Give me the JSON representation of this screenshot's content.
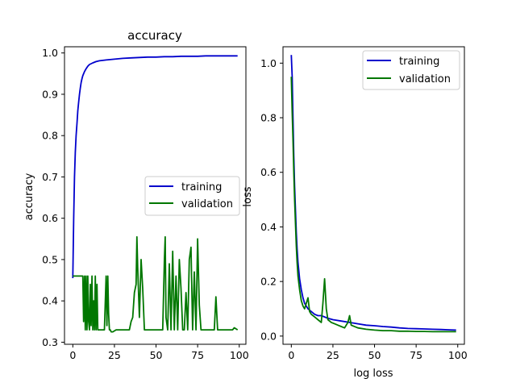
{
  "chart_data": [
    {
      "type": "line",
      "title": "accuracy",
      "xlabel": "",
      "ylabel": "accuracy",
      "xlim": [
        -5,
        104
      ],
      "ylim": [
        0.295,
        1.015
      ],
      "xticks": [
        0,
        25,
        50,
        75,
        100
      ],
      "yticks": [
        0.3,
        0.4,
        0.5,
        0.6,
        0.7,
        0.8,
        0.9,
        1.0
      ],
      "ytick_labels": [
        "0.3",
        "0.4",
        "0.5",
        "0.6",
        "0.7",
        "0.8",
        "0.9",
        "1.0"
      ],
      "grid": false,
      "legend_position": "center-right",
      "series": [
        {
          "name": "training",
          "color": "#0000cc",
          "x": [
            0,
            0.5,
            1,
            1.5,
            2,
            2.5,
            3,
            3.5,
            4,
            4.5,
            5,
            5.5,
            6,
            7,
            8,
            9,
            10,
            12,
            14,
            16,
            18,
            20,
            25,
            30,
            35,
            40,
            45,
            50,
            55,
            60,
            65,
            70,
            75,
            80,
            85,
            90,
            95,
            99
          ],
          "y": [
            0.455,
            0.6,
            0.7,
            0.76,
            0.8,
            0.83,
            0.86,
            0.88,
            0.9,
            0.915,
            0.928,
            0.938,
            0.945,
            0.955,
            0.962,
            0.968,
            0.972,
            0.976,
            0.979,
            0.981,
            0.982,
            0.983,
            0.985,
            0.987,
            0.988,
            0.989,
            0.99,
            0.99,
            0.991,
            0.991,
            0.992,
            0.992,
            0.992,
            0.993,
            0.993,
            0.993,
            0.993,
            0.993
          ]
        },
        {
          "name": "validation",
          "color": "#007700",
          "x": [
            0,
            1,
            3,
            5,
            6,
            6.5,
            7,
            7.5,
            8,
            8.5,
            9,
            9.5,
            10,
            10.5,
            11,
            11.5,
            12,
            12.5,
            13,
            13.5,
            14,
            14.5,
            15,
            16,
            17,
            18,
            19,
            20,
            20.5,
            21,
            21.5,
            22,
            22.5,
            23,
            24,
            26,
            28,
            30,
            32,
            34,
            35,
            36,
            37,
            38,
            38.5,
            39,
            40,
            41,
            42,
            43,
            44,
            45,
            46,
            47,
            48,
            49,
            50,
            51,
            52,
            53,
            54,
            55,
            55.5,
            56,
            57,
            58,
            59,
            60,
            61,
            62,
            63,
            64,
            65,
            66,
            67,
            68,
            69,
            70,
            71,
            72,
            73,
            74,
            75,
            76,
            77,
            78,
            79,
            80,
            81,
            82,
            83,
            84,
            85,
            86,
            87,
            88,
            90,
            92,
            94,
            96,
            97,
            99
          ],
          "y": [
            0.46,
            0.46,
            0.46,
            0.46,
            0.46,
            0.35,
            0.46,
            0.33,
            0.46,
            0.33,
            0.46,
            0.35,
            0.33,
            0.44,
            0.34,
            0.46,
            0.33,
            0.4,
            0.33,
            0.46,
            0.33,
            0.44,
            0.33,
            0.33,
            0.33,
            0.33,
            0.33,
            0.46,
            0.34,
            0.46,
            0.37,
            0.33,
            0.33,
            0.325,
            0.325,
            0.33,
            0.33,
            0.33,
            0.33,
            0.33,
            0.35,
            0.36,
            0.42,
            0.44,
            0.555,
            0.48,
            0.36,
            0.5,
            0.43,
            0.33,
            0.33,
            0.33,
            0.33,
            0.33,
            0.33,
            0.33,
            0.33,
            0.33,
            0.33,
            0.33,
            0.33,
            0.5,
            0.555,
            0.36,
            0.33,
            0.49,
            0.33,
            0.52,
            0.33,
            0.46,
            0.33,
            0.5,
            0.43,
            0.33,
            0.33,
            0.42,
            0.33,
            0.5,
            0.53,
            0.33,
            0.47,
            0.33,
            0.55,
            0.39,
            0.33,
            0.33,
            0.33,
            0.33,
            0.33,
            0.33,
            0.33,
            0.33,
            0.33,
            0.41,
            0.33,
            0.33,
            0.33,
            0.33,
            0.33,
            0.33,
            0.335,
            0.33
          ]
        }
      ]
    },
    {
      "type": "line",
      "title": "",
      "xlabel": "log loss",
      "ylabel": "loss",
      "xlim": [
        -5,
        104
      ],
      "ylim": [
        -0.03,
        1.06
      ],
      "xticks": [
        0,
        25,
        50,
        75,
        100
      ],
      "yticks": [
        0.0,
        0.2,
        0.4,
        0.6,
        0.8,
        1.0
      ],
      "ytick_labels": [
        "0.0",
        "0.2",
        "0.4",
        "0.6",
        "0.8",
        "1.0"
      ],
      "grid": false,
      "legend_position": "top-right",
      "series": [
        {
          "name": "training",
          "color": "#0000cc",
          "x": [
            0,
            0.5,
            1,
            1.5,
            2,
            2.5,
            3,
            3.5,
            4,
            5,
            6,
            7,
            8,
            9,
            10,
            11,
            12,
            14,
            16,
            18,
            20,
            22,
            25,
            30,
            35,
            40,
            45,
            50,
            55,
            60,
            65,
            70,
            75,
            80,
            85,
            90,
            95,
            99
          ],
          "y": [
            1.03,
            0.95,
            0.8,
            0.66,
            0.55,
            0.46,
            0.38,
            0.32,
            0.27,
            0.21,
            0.17,
            0.14,
            0.12,
            0.11,
            0.1,
            0.095,
            0.09,
            0.08,
            0.075,
            0.075,
            0.07,
            0.065,
            0.06,
            0.055,
            0.05,
            0.045,
            0.04,
            0.038,
            0.035,
            0.033,
            0.03,
            0.028,
            0.027,
            0.026,
            0.025,
            0.024,
            0.023,
            0.022
          ]
        },
        {
          "name": "validation",
          "color": "#007700",
          "x": [
            0,
            0.5,
            1,
            1.5,
            2,
            2.5,
            3,
            3.5,
            4,
            5,
            6,
            7,
            8,
            9,
            10,
            11,
            12,
            14,
            16,
            18,
            19,
            20,
            21,
            22,
            24,
            26,
            28,
            30,
            32,
            34,
            35,
            36,
            40,
            45,
            50,
            55,
            60,
            65,
            70,
            75,
            80,
            85,
            90,
            95,
            99
          ],
          "y": [
            0.95,
            0.82,
            0.72,
            0.6,
            0.5,
            0.41,
            0.33,
            0.27,
            0.22,
            0.17,
            0.13,
            0.11,
            0.1,
            0.12,
            0.14,
            0.09,
            0.08,
            0.07,
            0.06,
            0.05,
            0.12,
            0.21,
            0.1,
            0.06,
            0.05,
            0.045,
            0.04,
            0.035,
            0.03,
            0.05,
            0.075,
            0.04,
            0.03,
            0.025,
            0.022,
            0.02,
            0.02,
            0.018,
            0.018,
            0.017,
            0.017,
            0.016,
            0.016,
            0.016,
            0.016
          ]
        }
      ]
    }
  ]
}
